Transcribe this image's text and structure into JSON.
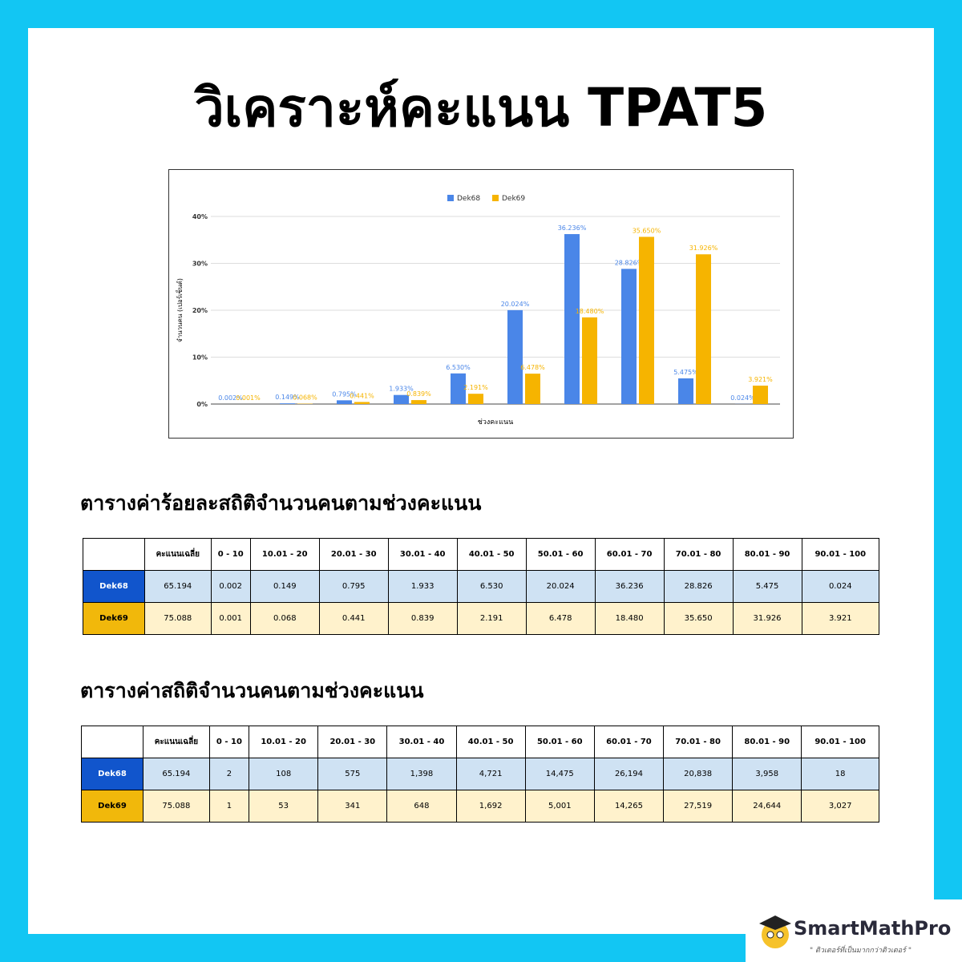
{
  "header": {
    "title": "วิเคราะห์คะแนน TPAT5"
  },
  "chart_data": {
    "type": "bar",
    "x_label": "ช่วงคะแนน",
    "y_label": "จำนวนคน (เปอร์เซ็นต์)",
    "categories": [
      null,
      null,
      null,
      null,
      null,
      null,
      null,
      null,
      null,
      null
    ],
    "series": [
      {
        "name": "Dek68",
        "color": "#4a86e8",
        "values": [
          0.002,
          0.149,
          0.795,
          1.933,
          6.53,
          20.024,
          36.236,
          28.826,
          5.475,
          0.024
        ],
        "value_labels": [
          "0.002%",
          "0.149%",
          "0.795%",
          "1.933%",
          "6.530%",
          "20.024%",
          "36.236%",
          "28.826%",
          "5.475%",
          "0.024%"
        ]
      },
      {
        "name": "Dek69",
        "color": "#f6b400",
        "values": [
          0.001,
          0.068,
          0.441,
          0.839,
          2.191,
          6.478,
          18.48,
          35.65,
          31.926,
          3.921
        ],
        "value_labels": [
          "0.001%",
          "0.068%",
          "0.441%",
          "0.839%",
          "2.191%",
          "6.478%",
          "18.480%",
          "35.650%",
          "31.926%",
          "3.921%"
        ]
      }
    ],
    "ylim": [
      0,
      40
    ],
    "yticks": [
      {
        "value": 0,
        "label": "0%"
      },
      {
        "value": 10,
        "label": "10%"
      },
      {
        "value": 20,
        "label": "20%"
      },
      {
        "value": 30,
        "label": "30%"
      },
      {
        "value": 40,
        "label": "40%"
      }
    ],
    "grid": true,
    "legend": "top"
  },
  "tables": [
    {
      "title": "ตารางค่าร้อยละสถิติจำนวนคนตามช่วงคะแนน",
      "header": [
        "คะแนนเฉลี่ย",
        "0 - 10",
        "10.01 - 20",
        "20.01 - 30",
        "30.01 - 40",
        "40.01 - 50",
        "50.01 - 60",
        "60.01 - 70",
        "70.01 - 80",
        "80.01 - 90",
        "90.01 - 100"
      ],
      "rows": [
        {
          "label": "Dek68",
          "cells": [
            "65.194",
            "0.002",
            "0.149",
            "0.795",
            "1.933",
            "6.530",
            "20.024",
            "36.236",
            "28.826",
            "5.475",
            "0.024"
          ]
        },
        {
          "label": "Dek69",
          "cells": [
            "75.088",
            "0.001",
            "0.068",
            "0.441",
            "0.839",
            "2.191",
            "6.478",
            "18.480",
            "35.650",
            "31.926",
            "3.921"
          ]
        }
      ]
    },
    {
      "title": "ตารางค่าสถิติจำนวนคนตามช่วงคะแนน",
      "header": [
        "คะแนนเฉลี่ย",
        "0 - 10",
        "10.01 - 20",
        "20.01 - 30",
        "30.01 - 40",
        "40.01 - 50",
        "50.01 - 60",
        "60.01 - 70",
        "70.01 - 80",
        "80.01 - 90",
        "90.01 - 100"
      ],
      "rows": [
        {
          "label": "Dek68",
          "cells": [
            "65.194",
            "2",
            "108",
            "575",
            "1,398",
            "4,721",
            "14,475",
            "26,194",
            "20,838",
            "3,958",
            "18"
          ]
        },
        {
          "label": "Dek69",
          "cells": [
            "75.088",
            "1",
            "53",
            "341",
            "648",
            "1,692",
            "5,001",
            "14,265",
            "27,519",
            "24,644",
            "3,027"
          ]
        }
      ]
    }
  ],
  "footer": {
    "brand": "SmartMathPro",
    "tagline": "\" ติวเตอร์ที่เป็นมากกว่าติวเตอร์ \""
  }
}
